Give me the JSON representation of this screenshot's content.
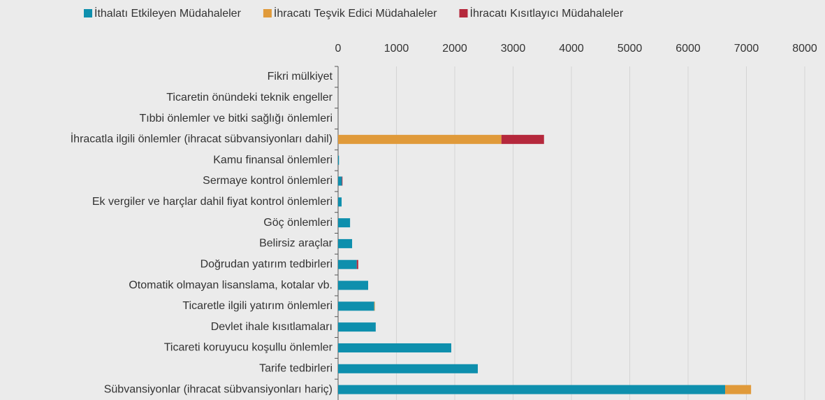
{
  "chart_data": {
    "type": "stacked-barh",
    "categories": [
      "Fikri mülkiyet",
      "Ticaretin önündeki teknik engeller",
      "Tıbbi önlemler ve bitki sağlığı önlemleri",
      "İhracatla ilgili önlemler (ihracat sübvansiyonları dahil)",
      "Kamu  finansal  önlemleri",
      "Sermaye kontrol önlemleri",
      "Ek vergiler ve harçlar dahil fiyat kontrol önlemleri",
      "Göç önlemleri",
      "Belirsiz araçlar",
      "Doğrudan yatırım tedbirleri ",
      "Otomatik olmayan lisanslama, kotalar vb.",
      "Ticaretle ilgili yatırım önlemleri",
      "Devlet ihale kısıtlamaları",
      "Ticareti koruyucu koşullu önlemler",
      "Tarife tedbirleri",
      "Sübvansiyonlar (ihracat sübvansiyonları hariç)"
    ],
    "series": [
      {
        "name": "İthalatı Etkileyen Müdahaleler",
        "color": "#0e8fad",
        "values": [
          0,
          0,
          0,
          0,
          15,
          65,
          60,
          205,
          240,
          320,
          515,
          620,
          645,
          1940,
          2395,
          6635
        ]
      },
      {
        "name": "İhracatı Teşvik Edici Müdahaleler",
        "color": "#e09a3a",
        "values": [
          0,
          0,
          0,
          2800,
          0,
          0,
          0,
          0,
          0,
          0,
          0,
          10,
          0,
          0,
          0,
          445
        ]
      },
      {
        "name": "İhracatı Kısıtlayıcı Müdahaleler",
        "color": "#b5283c",
        "values": [
          0,
          0,
          0,
          730,
          0,
          10,
          0,
          0,
          0,
          25,
          0,
          0,
          0,
          0,
          0,
          0
        ]
      }
    ],
    "xlim": [
      0,
      8000
    ],
    "xticks": [
      0,
      1000,
      2000,
      3000,
      4000,
      5000,
      6000,
      7000,
      8000
    ],
    "grid": true
  }
}
